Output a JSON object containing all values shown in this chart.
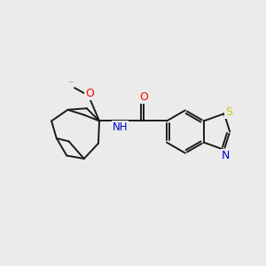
{
  "background_color": "#ebebeb",
  "bond_color": "#1a1a1a",
  "atom_colors": {
    "O": "#ff0000",
    "N": "#0000cc",
    "S": "#cccc00",
    "C": "#1a1a1a"
  },
  "figsize": [
    3.0,
    3.0
  ],
  "dpi": 100,
  "bond_lw": 1.4,
  "font_size": 8.5
}
